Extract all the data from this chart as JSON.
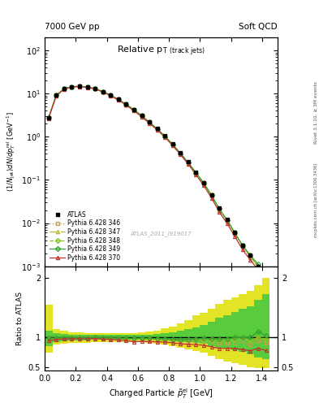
{
  "title_main": "Relative p$_{T}$ (track jets)",
  "top_left_label": "7000 GeV pp",
  "top_right_label": "Soft QCD",
  "watermark": "ATLAS_2011_I919017",
  "right_label_top": "Rivet 3.1.10, ≥ 3M events",
  "right_label_bot": "mcplots.cern.ch [arXiv:1306.3436]",
  "xlabel": "Charged Particle p$_{T}^{rel}$ [GeV]",
  "ylabel": "(1/N$_{jet}$)dN/dp$_{T}^{rel}$ [GeV$^{-1}$]",
  "ylabel_ratio": "Ratio to ATLAS",
  "x_data": [
    0.025,
    0.075,
    0.125,
    0.175,
    0.225,
    0.275,
    0.325,
    0.375,
    0.425,
    0.475,
    0.525,
    0.575,
    0.625,
    0.675,
    0.725,
    0.775,
    0.825,
    0.875,
    0.925,
    0.975,
    1.025,
    1.075,
    1.125,
    1.175,
    1.225,
    1.275,
    1.325,
    1.375,
    1.425
  ],
  "atlas_y": [
    2.8,
    9.2,
    13.0,
    14.5,
    14.8,
    14.2,
    13.0,
    11.2,
    9.2,
    7.4,
    5.7,
    4.3,
    3.1,
    2.2,
    1.55,
    1.05,
    0.68,
    0.43,
    0.26,
    0.15,
    0.085,
    0.045,
    0.022,
    0.012,
    0.006,
    0.003,
    0.0018,
    0.001,
    0.0006
  ],
  "atlas_yerr": [
    0.3,
    0.5,
    0.7,
    0.8,
    0.8,
    0.7,
    0.6,
    0.5,
    0.4,
    0.3,
    0.25,
    0.2,
    0.15,
    0.1,
    0.08,
    0.06,
    0.04,
    0.025,
    0.015,
    0.009,
    0.006,
    0.004,
    0.002,
    0.001,
    0.0007,
    0.0004,
    0.0002,
    0.0001,
    8e-05
  ],
  "py346_y": [
    2.7,
    9.0,
    12.8,
    14.3,
    14.6,
    14.0,
    12.9,
    11.0,
    9.0,
    7.2,
    5.5,
    4.1,
    3.0,
    2.1,
    1.48,
    1.0,
    0.64,
    0.4,
    0.24,
    0.14,
    0.08,
    0.042,
    0.02,
    0.011,
    0.0055,
    0.0028,
    0.0016,
    0.00095,
    0.00055
  ],
  "py347_y": [
    2.75,
    9.1,
    12.9,
    14.4,
    14.7,
    14.1,
    13.0,
    11.1,
    9.1,
    7.3,
    5.6,
    4.2,
    3.05,
    2.15,
    1.51,
    1.02,
    0.65,
    0.41,
    0.25,
    0.145,
    0.082,
    0.043,
    0.021,
    0.0115,
    0.0058,
    0.003,
    0.0017,
    0.001,
    0.00058
  ],
  "py348_y": [
    2.75,
    9.1,
    12.9,
    14.4,
    14.7,
    14.1,
    13.0,
    11.1,
    9.1,
    7.3,
    5.6,
    4.2,
    3.05,
    2.15,
    1.51,
    1.02,
    0.655,
    0.41,
    0.25,
    0.145,
    0.083,
    0.044,
    0.021,
    0.0116,
    0.0059,
    0.003,
    0.0017,
    0.001,
    0.00059
  ],
  "py349_y": [
    2.76,
    9.15,
    12.95,
    14.45,
    14.75,
    14.15,
    13.05,
    11.15,
    9.15,
    7.35,
    5.65,
    4.25,
    3.08,
    2.17,
    1.52,
    1.03,
    0.66,
    0.415,
    0.252,
    0.147,
    0.084,
    0.044,
    0.0215,
    0.0118,
    0.006,
    0.003,
    0.0018,
    0.0011,
    0.00062
  ],
  "py370_y": [
    2.65,
    8.9,
    12.7,
    14.2,
    14.5,
    13.9,
    12.8,
    10.9,
    8.9,
    7.1,
    5.4,
    4.0,
    2.9,
    2.05,
    1.44,
    0.97,
    0.62,
    0.385,
    0.23,
    0.132,
    0.074,
    0.038,
    0.018,
    0.0098,
    0.0049,
    0.0024,
    0.0014,
    0.00082,
    0.00047
  ],
  "ratio_346": [
    0.964,
    0.978,
    0.985,
    0.986,
    0.986,
    0.986,
    0.992,
    0.982,
    0.978,
    0.973,
    0.965,
    0.953,
    0.968,
    0.955,
    0.955,
    0.952,
    0.941,
    0.93,
    0.923,
    0.933,
    0.941,
    0.933,
    0.909,
    0.917,
    0.917,
    0.933,
    0.889,
    0.95,
    0.917
  ],
  "ratio_347": [
    0.982,
    0.989,
    0.992,
    0.993,
    0.993,
    0.993,
    1.0,
    0.991,
    0.989,
    0.986,
    0.982,
    0.977,
    0.984,
    0.977,
    0.974,
    0.971,
    0.956,
    0.953,
    0.962,
    0.967,
    0.965,
    0.956,
    0.955,
    0.958,
    0.967,
    1.0,
    0.944,
    1.0,
    0.967
  ],
  "ratio_348": [
    0.982,
    0.989,
    0.992,
    0.993,
    0.993,
    0.993,
    1.0,
    0.991,
    0.989,
    0.986,
    0.982,
    0.977,
    0.984,
    0.977,
    0.974,
    0.971,
    0.963,
    0.953,
    0.962,
    0.967,
    0.976,
    0.978,
    0.955,
    0.967,
    0.983,
    1.0,
    0.944,
    1.0,
    0.983
  ],
  "ratio_349": [
    0.986,
    0.994,
    0.996,
    0.997,
    0.997,
    0.997,
    1.004,
    0.996,
    0.994,
    0.993,
    0.991,
    0.988,
    0.994,
    0.986,
    0.981,
    0.981,
    0.971,
    0.965,
    0.969,
    0.98,
    0.988,
    0.978,
    0.977,
    0.983,
    1.0,
    1.0,
    1.0,
    1.1,
    1.033
  ],
  "ratio_370": [
    0.946,
    0.967,
    0.977,
    0.979,
    0.98,
    0.979,
    0.985,
    0.973,
    0.967,
    0.959,
    0.947,
    0.93,
    0.935,
    0.932,
    0.929,
    0.924,
    0.912,
    0.895,
    0.885,
    0.88,
    0.871,
    0.844,
    0.818,
    0.817,
    0.817,
    0.8,
    0.778,
    0.82,
    0.783
  ],
  "band_yellow_low": [
    0.75,
    0.88,
    0.9,
    0.91,
    0.91,
    0.91,
    0.92,
    0.92,
    0.92,
    0.92,
    0.92,
    0.92,
    0.92,
    0.91,
    0.9,
    0.88,
    0.86,
    0.83,
    0.8,
    0.77,
    0.74,
    0.69,
    0.64,
    0.6,
    0.57,
    0.54,
    0.5,
    0.49,
    0.48
  ],
  "band_yellow_high": [
    1.55,
    1.14,
    1.11,
    1.09,
    1.09,
    1.08,
    1.08,
    1.08,
    1.08,
    1.08,
    1.08,
    1.08,
    1.09,
    1.1,
    1.12,
    1.15,
    1.19,
    1.24,
    1.3,
    1.37,
    1.42,
    1.48,
    1.57,
    1.63,
    1.68,
    1.73,
    1.78,
    1.88,
    2.0
  ],
  "band_green_low": [
    0.86,
    0.93,
    0.94,
    0.95,
    0.95,
    0.95,
    0.96,
    0.96,
    0.96,
    0.96,
    0.96,
    0.96,
    0.96,
    0.96,
    0.96,
    0.95,
    0.94,
    0.93,
    0.92,
    0.91,
    0.89,
    0.86,
    0.83,
    0.81,
    0.79,
    0.76,
    0.72,
    0.67,
    0.64
  ],
  "band_green_high": [
    1.12,
    1.07,
    1.06,
    1.05,
    1.05,
    1.05,
    1.05,
    1.05,
    1.05,
    1.05,
    1.05,
    1.05,
    1.05,
    1.05,
    1.06,
    1.07,
    1.09,
    1.11,
    1.14,
    1.17,
    1.21,
    1.26,
    1.33,
    1.38,
    1.43,
    1.48,
    1.53,
    1.63,
    1.73
  ],
  "color_346": "#c8a050",
  "color_347": "#b8b830",
  "color_348": "#80c020",
  "color_349": "#30a030",
  "color_370": "#c03030",
  "color_atlas": "#000000",
  "color_band_yellow": "#e0e000",
  "color_band_green": "#40c840",
  "ylim_main": [
    0.001,
    200
  ],
  "ylim_ratio": [
    0.45,
    2.2
  ],
  "xlim": [
    0.0,
    1.5
  ],
  "bin_width": 0.05
}
